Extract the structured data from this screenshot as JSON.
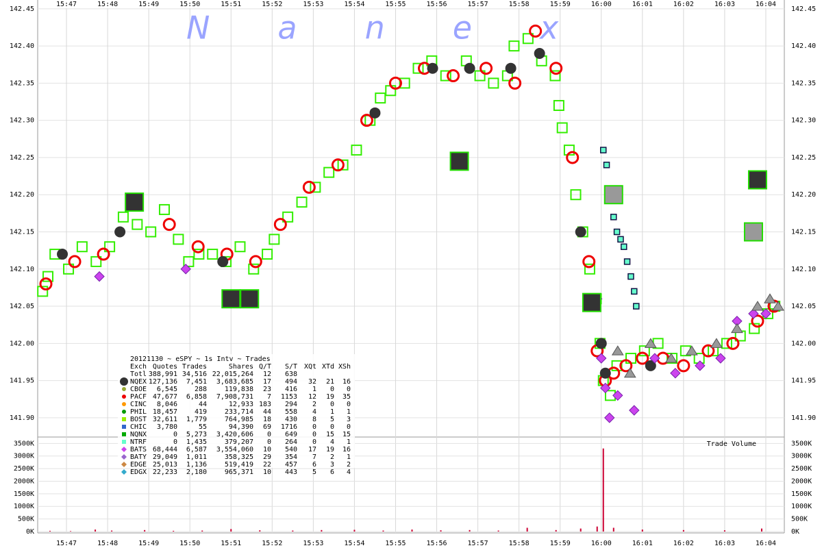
{
  "watermark": "Nanex",
  "chart_data": [
    {
      "type": "scatter",
      "xlim": [
        946.3,
        964.45
      ],
      "ylim": [
        141.875,
        142.46
      ],
      "grid": true,
      "xticks": [
        {
          "value": 947,
          "label": "15:47"
        },
        {
          "value": 948,
          "label": "15:48"
        },
        {
          "value": 949,
          "label": "15:49"
        },
        {
          "value": 950,
          "label": "15:50"
        },
        {
          "value": 951,
          "label": "15:51"
        },
        {
          "value": 952,
          "label": "15:52"
        },
        {
          "value": 953,
          "label": "15:53"
        },
        {
          "value": 954,
          "label": "15:54"
        },
        {
          "value": 955,
          "label": "15:55"
        },
        {
          "value": 956,
          "label": "15:56"
        },
        {
          "value": 957,
          "label": "15:57"
        },
        {
          "value": 958,
          "label": "15:58"
        },
        {
          "value": 959,
          "label": "15:59"
        },
        {
          "value": 960,
          "label": "16:00"
        },
        {
          "value": 961,
          "label": "16:01"
        },
        {
          "value": 962,
          "label": "16:02"
        },
        {
          "value": 963,
          "label": "16:03"
        },
        {
          "value": 964,
          "label": "16:04"
        }
      ],
      "yticks": [
        {
          "value": 141.9,
          "label": "141.90"
        },
        {
          "value": 141.95,
          "label": "141.95"
        },
        {
          "value": 142.0,
          "label": "142.00"
        },
        {
          "value": 142.05,
          "label": "142.05"
        },
        {
          "value": 142.1,
          "label": "142.10"
        },
        {
          "value": 142.15,
          "label": "142.15"
        },
        {
          "value": 142.2,
          "label": "142.20"
        },
        {
          "value": 142.25,
          "label": "142.25"
        },
        {
          "value": 142.3,
          "label": "142.30"
        },
        {
          "value": 142.35,
          "label": "142.35"
        },
        {
          "value": 142.4,
          "label": "142.40"
        },
        {
          "value": 142.45,
          "label": "142.45"
        }
      ],
      "series": [
        {
          "color": "#33ee00",
          "shape": "square",
          "x": [
            946.42,
            946.55,
            946.72,
            947.05,
            947.38,
            947.72,
            948.05,
            948.38,
            948.72,
            949.05,
            949.38,
            949.72,
            949.97,
            950.22,
            950.55,
            950.88,
            951.22,
            951.55,
            951.88,
            952.05,
            952.38,
            952.72,
            953.05,
            953.38,
            953.72,
            954.05,
            954.38,
            954.63,
            954.88,
            955.22,
            955.55,
            955.88,
            956.22,
            956.72,
            957.05,
            957.38,
            957.72,
            957.88,
            958.22,
            958.55,
            958.88,
            958.97,
            959.05,
            959.22,
            959.38,
            959.55,
            959.72,
            959.88,
            959.97,
            960.05,
            960.22,
            960.38,
            960.72,
            961.05,
            961.38,
            961.72,
            962.05,
            962.38,
            962.72,
            963.05,
            963.38,
            963.72,
            964.05,
            964.22
          ],
          "values": [
            142.07,
            142.09,
            142.12,
            142.1,
            142.13,
            142.11,
            142.13,
            142.17,
            142.16,
            142.15,
            142.18,
            142.14,
            142.11,
            142.12,
            142.12,
            142.11,
            142.13,
            142.1,
            142.12,
            142.14,
            142.17,
            142.19,
            142.21,
            142.23,
            142.24,
            142.26,
            142.3,
            142.33,
            142.34,
            142.35,
            142.37,
            142.38,
            142.36,
            142.38,
            142.36,
            142.35,
            142.36,
            142.4,
            142.41,
            142.38,
            142.36,
            142.32,
            142.29,
            142.26,
            142.2,
            142.15,
            142.1,
            142.06,
            142.0,
            141.95,
            141.93,
            141.97,
            141.98,
            141.99,
            142.0,
            141.98,
            141.99,
            141.98,
            141.99,
            142.0,
            142.01,
            142.02,
            142.04,
            142.05
          ]
        },
        {
          "color": "#ee0000",
          "shape": "circle",
          "x": [
            946.5,
            947.2,
            947.9,
            948.6,
            949.5,
            950.2,
            950.9,
            951.6,
            952.2,
            952.9,
            953.6,
            954.3,
            955.0,
            955.7,
            956.4,
            957.2,
            957.9,
            958.4,
            958.9,
            959.3,
            959.7,
            959.9,
            960.1,
            960.3,
            960.6,
            961.0,
            961.5,
            962.0,
            962.6,
            963.2,
            963.8,
            964.2
          ],
          "values": [
            142.08,
            142.11,
            142.12,
            142.19,
            142.16,
            142.13,
            142.12,
            142.11,
            142.16,
            142.21,
            142.24,
            142.3,
            142.35,
            142.37,
            142.36,
            142.37,
            142.35,
            142.42,
            142.37,
            142.25,
            142.11,
            141.99,
            141.95,
            141.96,
            141.97,
            141.98,
            141.98,
            141.97,
            141.99,
            142.0,
            142.03,
            142.05
          ]
        },
        {
          "color": "#333333",
          "shape": "dot",
          "x": [
            946.9,
            948.3,
            950.8,
            954.5,
            955.9,
            956.8,
            957.8,
            958.5,
            959.5,
            960.0,
            960.1,
            961.2
          ],
          "values": [
            142.12,
            142.15,
            142.11,
            142.31,
            142.37,
            142.37,
            142.37,
            142.39,
            142.15,
            142.0,
            141.96,
            141.97
          ]
        },
        {
          "color": "#66ffcc",
          "shape": "dot-square",
          "x": [
            960.05,
            960.13,
            960.22,
            960.3,
            960.38,
            960.47,
            960.55,
            960.63,
            960.72,
            960.8,
            960.85
          ],
          "values": [
            142.26,
            142.24,
            142.2,
            142.17,
            142.15,
            142.14,
            142.13,
            142.11,
            142.09,
            142.07,
            142.05
          ]
        },
        {
          "color": "#cc44ee",
          "shape": "diamond",
          "x": [
            947.8,
            949.9,
            959.9,
            960.0,
            960.1,
            960.2,
            960.4,
            960.8,
            961.3,
            961.8,
            962.4,
            962.9,
            963.3,
            963.7,
            964.0
          ],
          "values": [
            142.09,
            142.1,
            142.06,
            141.98,
            141.94,
            141.9,
            141.93,
            141.91,
            141.98,
            141.96,
            141.97,
            141.98,
            142.03,
            142.04,
            142.04
          ]
        },
        {
          "color": "#999999",
          "shape": "triangle",
          "x": [
            960.4,
            960.7,
            961.2,
            961.7,
            962.2,
            962.8,
            963.3,
            963.8,
            964.1,
            964.3
          ],
          "values": [
            141.99,
            141.96,
            142.0,
            141.98,
            141.99,
            142.0,
            142.02,
            142.05,
            142.06,
            142.05
          ]
        },
        {
          "color": "#333333",
          "shape": "block",
          "x": [
            948.65,
            951.0,
            951.45,
            956.55,
            959.77,
            963.8
          ],
          "values": [
            142.19,
            142.06,
            142.06,
            142.245,
            142.055,
            142.22
          ]
        },
        {
          "color": "#999999",
          "shape": "block",
          "x": [
            960.3,
            963.7
          ],
          "values": [
            142.2,
            142.15
          ]
        }
      ]
    },
    {
      "type": "bar",
      "title": "Trade Volume",
      "color": "#cc0033",
      "xlim": [
        946.3,
        964.45
      ],
      "ylim": [
        0,
        3700000
      ],
      "grid": true,
      "xticks": [
        {
          "value": 947,
          "label": "15:47"
        },
        {
          "value": 948,
          "label": "15:48"
        },
        {
          "value": 949,
          "label": "15:49"
        },
        {
          "value": 950,
          "label": "15:50"
        },
        {
          "value": 951,
          "label": "15:51"
        },
        {
          "value": 952,
          "label": "15:52"
        },
        {
          "value": 953,
          "label": "15:53"
        },
        {
          "value": 954,
          "label": "15:54"
        },
        {
          "value": 955,
          "label": "15:55"
        },
        {
          "value": 956,
          "label": "15:56"
        },
        {
          "value": 957,
          "label": "15:57"
        },
        {
          "value": 958,
          "label": "15:58"
        },
        {
          "value": 959,
          "label": "15:59"
        },
        {
          "value": 960,
          "label": "16:00"
        },
        {
          "value": 961,
          "label": "16:01"
        },
        {
          "value": 962,
          "label": "16:02"
        },
        {
          "value": 963,
          "label": "16:03"
        },
        {
          "value": 964,
          "label": "16:04"
        }
      ],
      "yticks": [
        {
          "value": 0,
          "label": "0K"
        },
        {
          "value": 500000,
          "label": "500K"
        },
        {
          "value": 1000000,
          "label": "1000K"
        },
        {
          "value": 1500000,
          "label": "1500K"
        },
        {
          "value": 2000000,
          "label": "2000K"
        },
        {
          "value": 2500000,
          "label": "2500K"
        },
        {
          "value": 3000000,
          "label": "3000K"
        },
        {
          "value": 3500000,
          "label": "3500K"
        }
      ],
      "x": [
        946.6,
        947.1,
        947.7,
        948.1,
        948.9,
        949.6,
        950.3,
        951.0,
        951.7,
        952.5,
        953.2,
        954.0,
        954.7,
        955.4,
        956.1,
        956.8,
        957.5,
        958.2,
        958.9,
        959.5,
        959.9,
        960.05,
        960.3,
        961.0,
        962.0,
        963.0,
        963.9
      ],
      "values": [
        30000,
        20000,
        80000,
        40000,
        60000,
        30000,
        40000,
        100000,
        50000,
        40000,
        60000,
        70000,
        40000,
        80000,
        50000,
        60000,
        40000,
        150000,
        60000,
        120000,
        200000,
        3300000,
        150000,
        80000,
        60000,
        50000,
        120000
      ]
    }
  ],
  "legend_table": {
    "title": "20121130 ~ eSPY ~ 1s Intv ~ Trades",
    "header": [
      "Exch",
      "Quotes",
      "Trades",
      "Shares",
      "Q/T",
      "S/T",
      "XQt",
      "XTd",
      "XSh"
    ],
    "rows": [
      {
        "cells": [
          "Totl",
          "388,991",
          "34,516",
          "22,015,264",
          "12",
          "638"
        ]
      },
      {
        "cells": [
          "NQEX",
          "127,136",
          "7,451",
          "3,683,685",
          "17",
          "494",
          "32",
          "21",
          "16"
        ],
        "color": "#333333",
        "shape": "circle"
      },
      {
        "cells": [
          "CBOE",
          "6,545",
          "288",
          "119,838",
          "23",
          "416",
          "1",
          "0",
          "0"
        ],
        "color": "#99aa33",
        "shape": "circle"
      },
      {
        "cells": [
          "PACF",
          "47,677",
          "6,858",
          "7,908,731",
          "7",
          "1153",
          "12",
          "19",
          "35"
        ],
        "color": "#ee0000",
        "shape": "circle"
      },
      {
        "cells": [
          "CINC",
          "8,046",
          "44",
          "12,933",
          "183",
          "294",
          "2",
          "0",
          "0"
        ],
        "color": "#ff9900",
        "shape": "circle"
      },
      {
        "cells": [
          "PHIL",
          "18,457",
          "419",
          "233,714",
          "44",
          "558",
          "4",
          "1",
          "1"
        ],
        "color": "#009900",
        "shape": "circle"
      },
      {
        "cells": [
          "BOST",
          "32,611",
          "1,779",
          "764,985",
          "18",
          "430",
          "8",
          "5",
          "3"
        ],
        "color": "#99ee00",
        "shape": "square"
      },
      {
        "cells": [
          "CHIC",
          "3,780",
          "55",
          "94,390",
          "69",
          "1716",
          "0",
          "0",
          "0"
        ],
        "color": "#3366cc",
        "shape": "square"
      },
      {
        "cells": [
          "NQNX",
          "0",
          "5,273",
          "3,420,606",
          "0",
          "649",
          "0",
          "15",
          "15"
        ],
        "color": "#00aa00",
        "shape": "square"
      },
      {
        "cells": [
          "NTRF",
          "0",
          "1,435",
          "379,207",
          "0",
          "264",
          "0",
          "4",
          "1"
        ],
        "color": "#66ffcc",
        "shape": "square"
      },
      {
        "cells": [
          "BATS",
          "68,444",
          "6,587",
          "3,554,060",
          "10",
          "540",
          "17",
          "19",
          "16"
        ],
        "color": "#cc44ee",
        "shape": "diamond"
      },
      {
        "cells": [
          "BATY",
          "29,049",
          "1,011",
          "358,325",
          "29",
          "354",
          "7",
          "2",
          "1"
        ],
        "color": "#9966cc",
        "shape": "diamond"
      },
      {
        "cells": [
          "EDGE",
          "25,013",
          "1,136",
          "519,419",
          "22",
          "457",
          "6",
          "3",
          "2"
        ],
        "color": "#cc8844",
        "shape": "diamond"
      },
      {
        "cells": [
          "EDGX",
          "22,233",
          "2,180",
          "965,371",
          "10",
          "443",
          "5",
          "6",
          "4"
        ],
        "color": "#33aacc",
        "shape": "diamond"
      }
    ]
  }
}
